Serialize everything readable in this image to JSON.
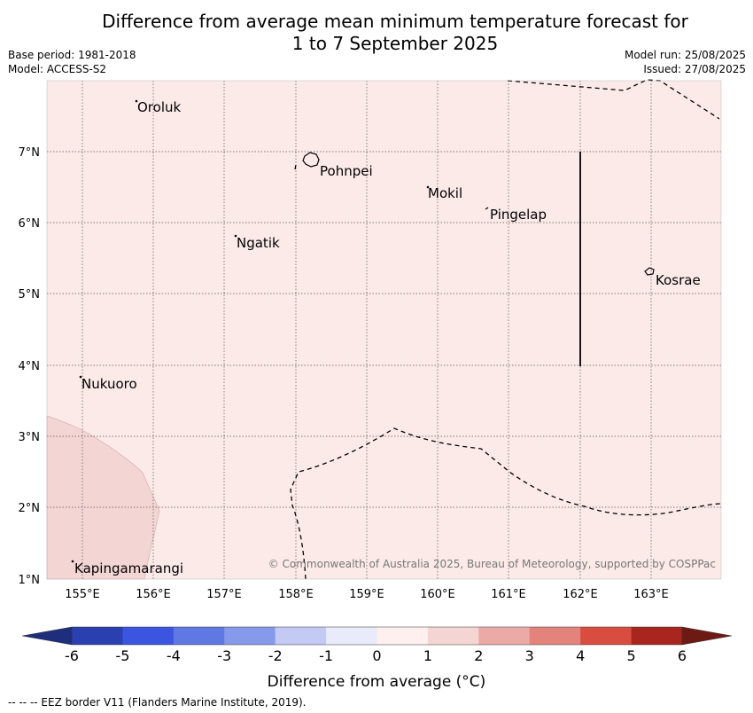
{
  "title": {
    "line1": "Difference from average mean minimum temperature forecast for",
    "line2": "1 to 7 September 2025"
  },
  "info": {
    "base_period": "Base period: 1981-2018",
    "model": "Model: ACCESS-S2",
    "model_run": "Model run: 25/08/2025",
    "issued": "Issued: 27/08/2025"
  },
  "map": {
    "lon_labels": [
      "155°E",
      "156°E",
      "157°E",
      "158°E",
      "159°E",
      "160°E",
      "161°E",
      "162°E",
      "163°E"
    ],
    "lat_labels": [
      "1°N",
      "2°N",
      "3°N",
      "4°N",
      "5°N",
      "6°N",
      "7°N"
    ],
    "places": [
      {
        "name": "Oroluk"
      },
      {
        "name": "Pohnpei"
      },
      {
        "name": "Mokil"
      },
      {
        "name": "Pingelap"
      },
      {
        "name": "Ngatik"
      },
      {
        "name": "Kosrae"
      },
      {
        "name": "Nukuoro"
      },
      {
        "name": "Kapingamarangi"
      }
    ],
    "copyright": "© Commonwealth of Australia 2025, Bureau of Meteorology, supported by COSPPac",
    "background_anomaly_range": "0 to 1",
    "background_color": "#fbeae8",
    "southwest_anomaly_range": "1 to 2",
    "southwest_color": "#f3d6d4"
  },
  "colorbar": {
    "ticks": [
      "-6",
      "-5",
      "-4",
      "-3",
      "-2",
      "-1",
      "0",
      "1",
      "2",
      "3",
      "4",
      "5",
      "6"
    ],
    "colors": [
      "#2a3fb0",
      "#3b55e0",
      "#5f78e4",
      "#8799ea",
      "#c3caf3",
      "#e9ebfa",
      "#fdf0ee",
      "#f4d5d3",
      "#ecaaa6",
      "#e4837c",
      "#d94c40",
      "#a8261e"
    ],
    "under_color": "#1f2e7c",
    "over_color": "#6e1a14",
    "label": "Difference from average (°C)"
  },
  "footer": "--  --  -- EEZ border V11 (Flanders Marine Institute, 2019)."
}
